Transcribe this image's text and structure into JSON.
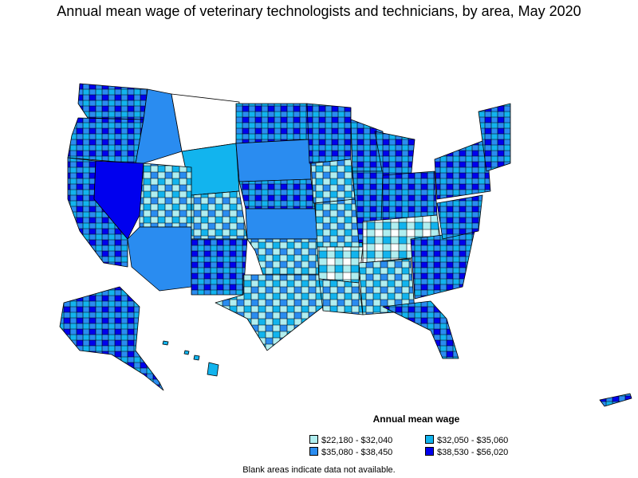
{
  "title": "Annual mean wage of veterinary technologists and technicians, by area, May 2020",
  "legend": {
    "title": "Annual mean wage",
    "items": [
      {
        "label": "$22,180 - $32,040",
        "color": "#b0eef0"
      },
      {
        "label": "$32,050 - $35,060",
        "color": "#12b4ee"
      },
      {
        "label": "$35,080 - $38,450",
        "color": "#2a8cf0"
      },
      {
        "label": "$38,530 - $56,020",
        "color": "#0000ee"
      }
    ]
  },
  "footnote": "Blank areas indicate data not available.",
  "colors": {
    "border": "#000000",
    "no_data": "#ffffff"
  }
}
